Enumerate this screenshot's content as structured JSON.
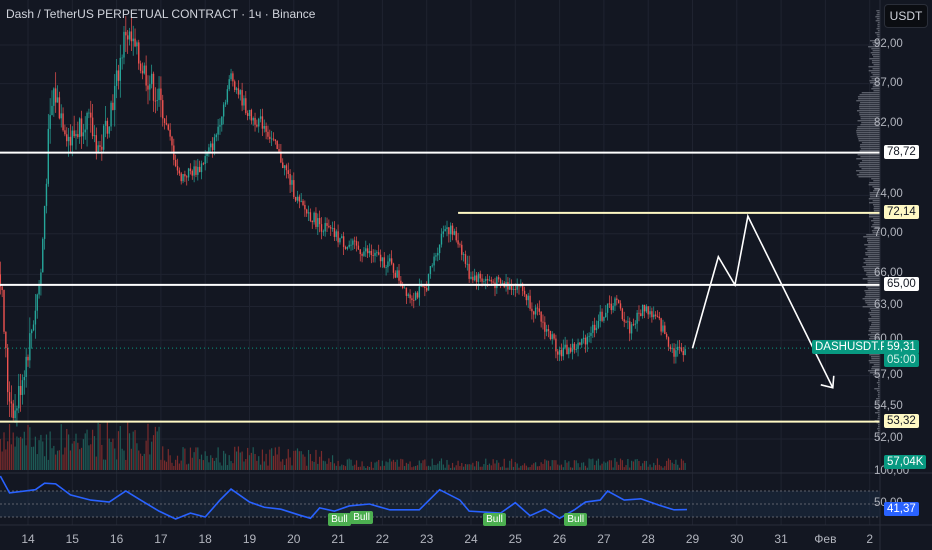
{
  "header": {
    "title": "Dash / TetherUS PERPETUAL CONTRACT · 1ч · Binance",
    "currency": "USDT"
  },
  "chart_data": {
    "type": "candlestick",
    "title": "Dash / TetherUS PERPETUAL CONTRACT · 1ч · Binance",
    "y_scale": "log",
    "ylim": [
      51,
      95
    ],
    "grid": true,
    "price_ticks": [
      "92,00",
      "87,00",
      "82,00",
      "74,00",
      "70,00",
      "66,00",
      "63,00",
      "60,00",
      "57,00",
      "54,50",
      "52,00"
    ],
    "price_tick_values": [
      92,
      87,
      82,
      74,
      70,
      66,
      63,
      60,
      57,
      54.5,
      52
    ],
    "x_ticks": [
      {
        "label": "14",
        "t": "01-14 00:00"
      },
      {
        "label": "15",
        "t": "01-15 00:00"
      },
      {
        "label": "16",
        "t": "01-16 00:00"
      },
      {
        "label": "17",
        "t": "01-17 00:00"
      },
      {
        "label": "18",
        "t": "01-18 00:00"
      },
      {
        "label": "19",
        "t": "01-19 00:00"
      },
      {
        "label": "20",
        "t": "01-20 00:00"
      },
      {
        "label": "21",
        "t": "01-21 00:00"
      },
      {
        "label": "22",
        "t": "01-22 00:00"
      },
      {
        "label": "23",
        "t": "01-23 00:00"
      },
      {
        "label": "24",
        "t": "01-24 00:00"
      },
      {
        "label": "25",
        "t": "01-25 00:00"
      },
      {
        "label": "26",
        "t": "01-26 00:00"
      },
      {
        "label": "27",
        "t": "01-27 00:00"
      },
      {
        "label": "28",
        "t": "01-28 00:00"
      },
      {
        "label": "29",
        "t": "01-29 00:00"
      },
      {
        "label": "30",
        "t": "01-30 00:00"
      },
      {
        "label": "31",
        "t": "01-31 00:00"
      },
      {
        "label": "Фев",
        "t": "02-01 00:00"
      },
      {
        "label": "2",
        "t": "02-02 00:00"
      }
    ],
    "price_path": [
      [
        "01-13 09:00",
        66
      ],
      [
        "01-13 13:00",
        56
      ],
      [
        "01-13 17:00",
        54
      ],
      [
        "01-14 01:00",
        60
      ],
      [
        "01-14 07:00",
        66
      ],
      [
        "01-14 11:00",
        80
      ],
      [
        "01-14 14:00",
        86
      ],
      [
        "01-14 23:00",
        80
      ],
      [
        "01-15 07:00",
        83
      ],
      [
        "01-15 15:00",
        79
      ],
      [
        "01-15 23:00",
        86
      ],
      [
        "01-16 05:00",
        94
      ],
      [
        "01-16 12:00",
        90
      ],
      [
        "01-16 23:00",
        85
      ],
      [
        "01-17 10:00",
        76
      ],
      [
        "01-17 21:00",
        77
      ],
      [
        "01-18 05:00",
        80
      ],
      [
        "01-18 14:00",
        88
      ],
      [
        "01-19 00:00",
        83
      ],
      [
        "01-19 08:00",
        82
      ],
      [
        "01-19 17:00",
        78
      ],
      [
        "01-20 03:00",
        73
      ],
      [
        "01-20 14:00",
        71
      ],
      [
        "01-21 04:00",
        69
      ],
      [
        "01-21 17:00",
        68
      ],
      [
        "01-22 04:00",
        67
      ],
      [
        "01-22 15:00",
        64
      ],
      [
        "01-22 23:00",
        64.5
      ],
      [
        "01-23 10:00",
        71
      ],
      [
        "01-23 18:00",
        69
      ],
      [
        "01-23 23:00",
        66
      ],
      [
        "01-24 16:00",
        65
      ],
      [
        "01-25 02:00",
        65
      ],
      [
        "01-25 13:00",
        62
      ],
      [
        "01-26 00:00",
        59
      ],
      [
        "01-26 11:00",
        59.5
      ],
      [
        "01-26 22:00",
        62
      ],
      [
        "01-27 06:00",
        63.5
      ],
      [
        "01-27 14:00",
        61
      ],
      [
        "01-27 22:00",
        63
      ],
      [
        "01-28 06:00",
        61.5
      ],
      [
        "01-28 14:00",
        59
      ],
      [
        "01-28 21:00",
        59.31
      ]
    ],
    "horizontal_levels": [
      {
        "price": 78.72,
        "label": "78,72",
        "color": "#ffffff",
        "from": "start"
      },
      {
        "price": 72.14,
        "label": "72,14",
        "color": "#fff9c4",
        "from": "01-23 17:00"
      },
      {
        "price": 65.0,
        "label": "65,00",
        "color": "#ffffff",
        "from": "start"
      },
      {
        "price": 53.32,
        "label": "53,32",
        "color": "#fff9c4",
        "from": "start"
      }
    ],
    "projection": [
      [
        "01-29 00:00",
        59.3
      ],
      [
        "01-29 14:00",
        67.7
      ],
      [
        "01-29 23:00",
        65.0
      ],
      [
        "01-30 06:00",
        71.8
      ],
      [
        "02-01 04:00",
        56.0
      ]
    ],
    "last_price": {
      "symbol": "DASHUSDT.P",
      "value": "59,31",
      "countdown": "05:00",
      "price": 59.31,
      "color": "#089981"
    },
    "volume": {
      "last_label": "57,04K",
      "up_color": "#26a69a",
      "down_color": "#ef5350"
    },
    "rsi": {
      "value_label": "41,37",
      "color": "#2962ff",
      "bands": [
        70,
        50,
        30
      ],
      "tick_labels": [
        "100,00",
        "50,00"
      ],
      "points": [
        [
          "01-13 09:00",
          93
        ],
        [
          "01-13 14:00",
          67
        ],
        [
          "01-14 04:00",
          72
        ],
        [
          "01-14 09:00",
          82
        ],
        [
          "01-14 15:00",
          81
        ],
        [
          "01-14 23:00",
          64
        ],
        [
          "01-15 10:00",
          56
        ],
        [
          "01-15 20:00",
          53
        ],
        [
          "01-16 05:00",
          70
        ],
        [
          "01-16 13:00",
          56
        ],
        [
          "01-16 23:00",
          39
        ],
        [
          "01-17 08:00",
          27
        ],
        [
          "01-17 16:00",
          36
        ],
        [
          "01-18 00:00",
          30
        ],
        [
          "01-18 08:00",
          56
        ],
        [
          "01-18 14:00",
          73
        ],
        [
          "01-19 00:00",
          53
        ],
        [
          "01-19 08:00",
          45
        ],
        [
          "01-19 17:00",
          42
        ],
        [
          "01-20 03:00",
          33
        ],
        [
          "01-20 09:00",
          28
        ],
        [
          "01-20 14:00",
          44
        ],
        [
          "01-20 22:00",
          39
        ],
        [
          "01-21 06:00",
          47
        ],
        [
          "01-21 17:00",
          50
        ],
        [
          "01-22 04:00",
          41
        ],
        [
          "01-22 20:00",
          41
        ],
        [
          "01-23 07:00",
          72
        ],
        [
          "01-23 18:00",
          56
        ],
        [
          "01-23 23:00",
          39
        ],
        [
          "01-24 16:00",
          36
        ],
        [
          "01-25 00:00",
          52
        ],
        [
          "01-25 08:00",
          32
        ],
        [
          "01-25 16:00",
          42
        ],
        [
          "01-26 00:00",
          28
        ],
        [
          "01-26 08:00",
          41
        ],
        [
          "01-26 14:00",
          53
        ],
        [
          "01-26 22:00",
          56
        ],
        [
          "01-27 02:00",
          70
        ],
        [
          "01-27 11:00",
          56
        ],
        [
          "01-27 20:00",
          58
        ],
        [
          "01-28 06:00",
          48
        ],
        [
          "01-28 14:00",
          41
        ],
        [
          "01-28 21:00",
          41.37
        ]
      ],
      "divergence_labels": [
        {
          "text": "Bull",
          "t": "01-21 00:00"
        },
        {
          "text": "Bull",
          "t": "01-21 12:00"
        },
        {
          "text": "Bull",
          "t": "01-24 12:00"
        },
        {
          "text": "Bull",
          "t": "01-26 08:00"
        }
      ]
    }
  }
}
